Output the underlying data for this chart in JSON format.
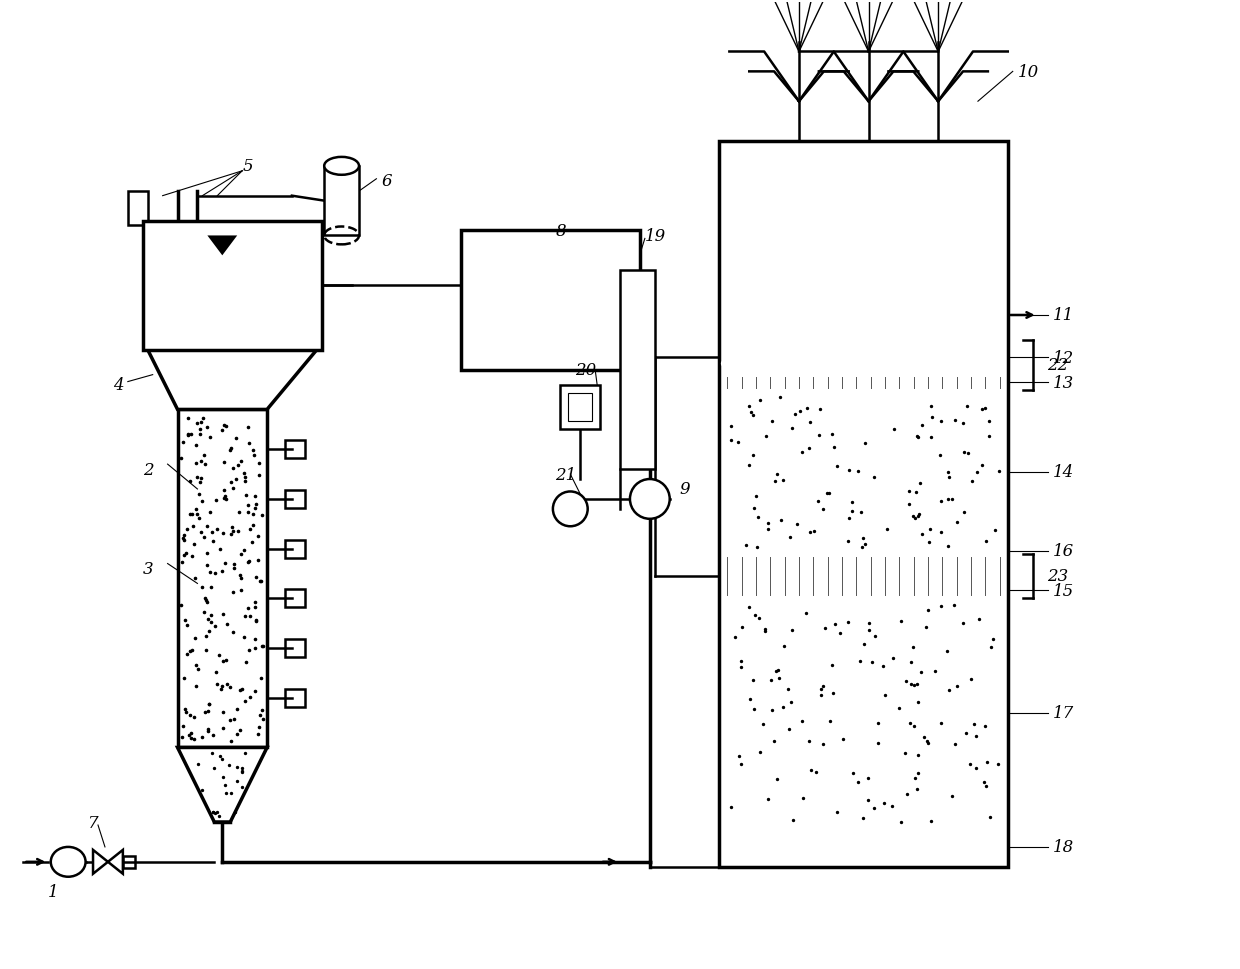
{
  "background_color": "#ffffff",
  "line_color": "#000000",
  "lw": 1.8,
  "lw2": 2.5,
  "fs": 12
}
